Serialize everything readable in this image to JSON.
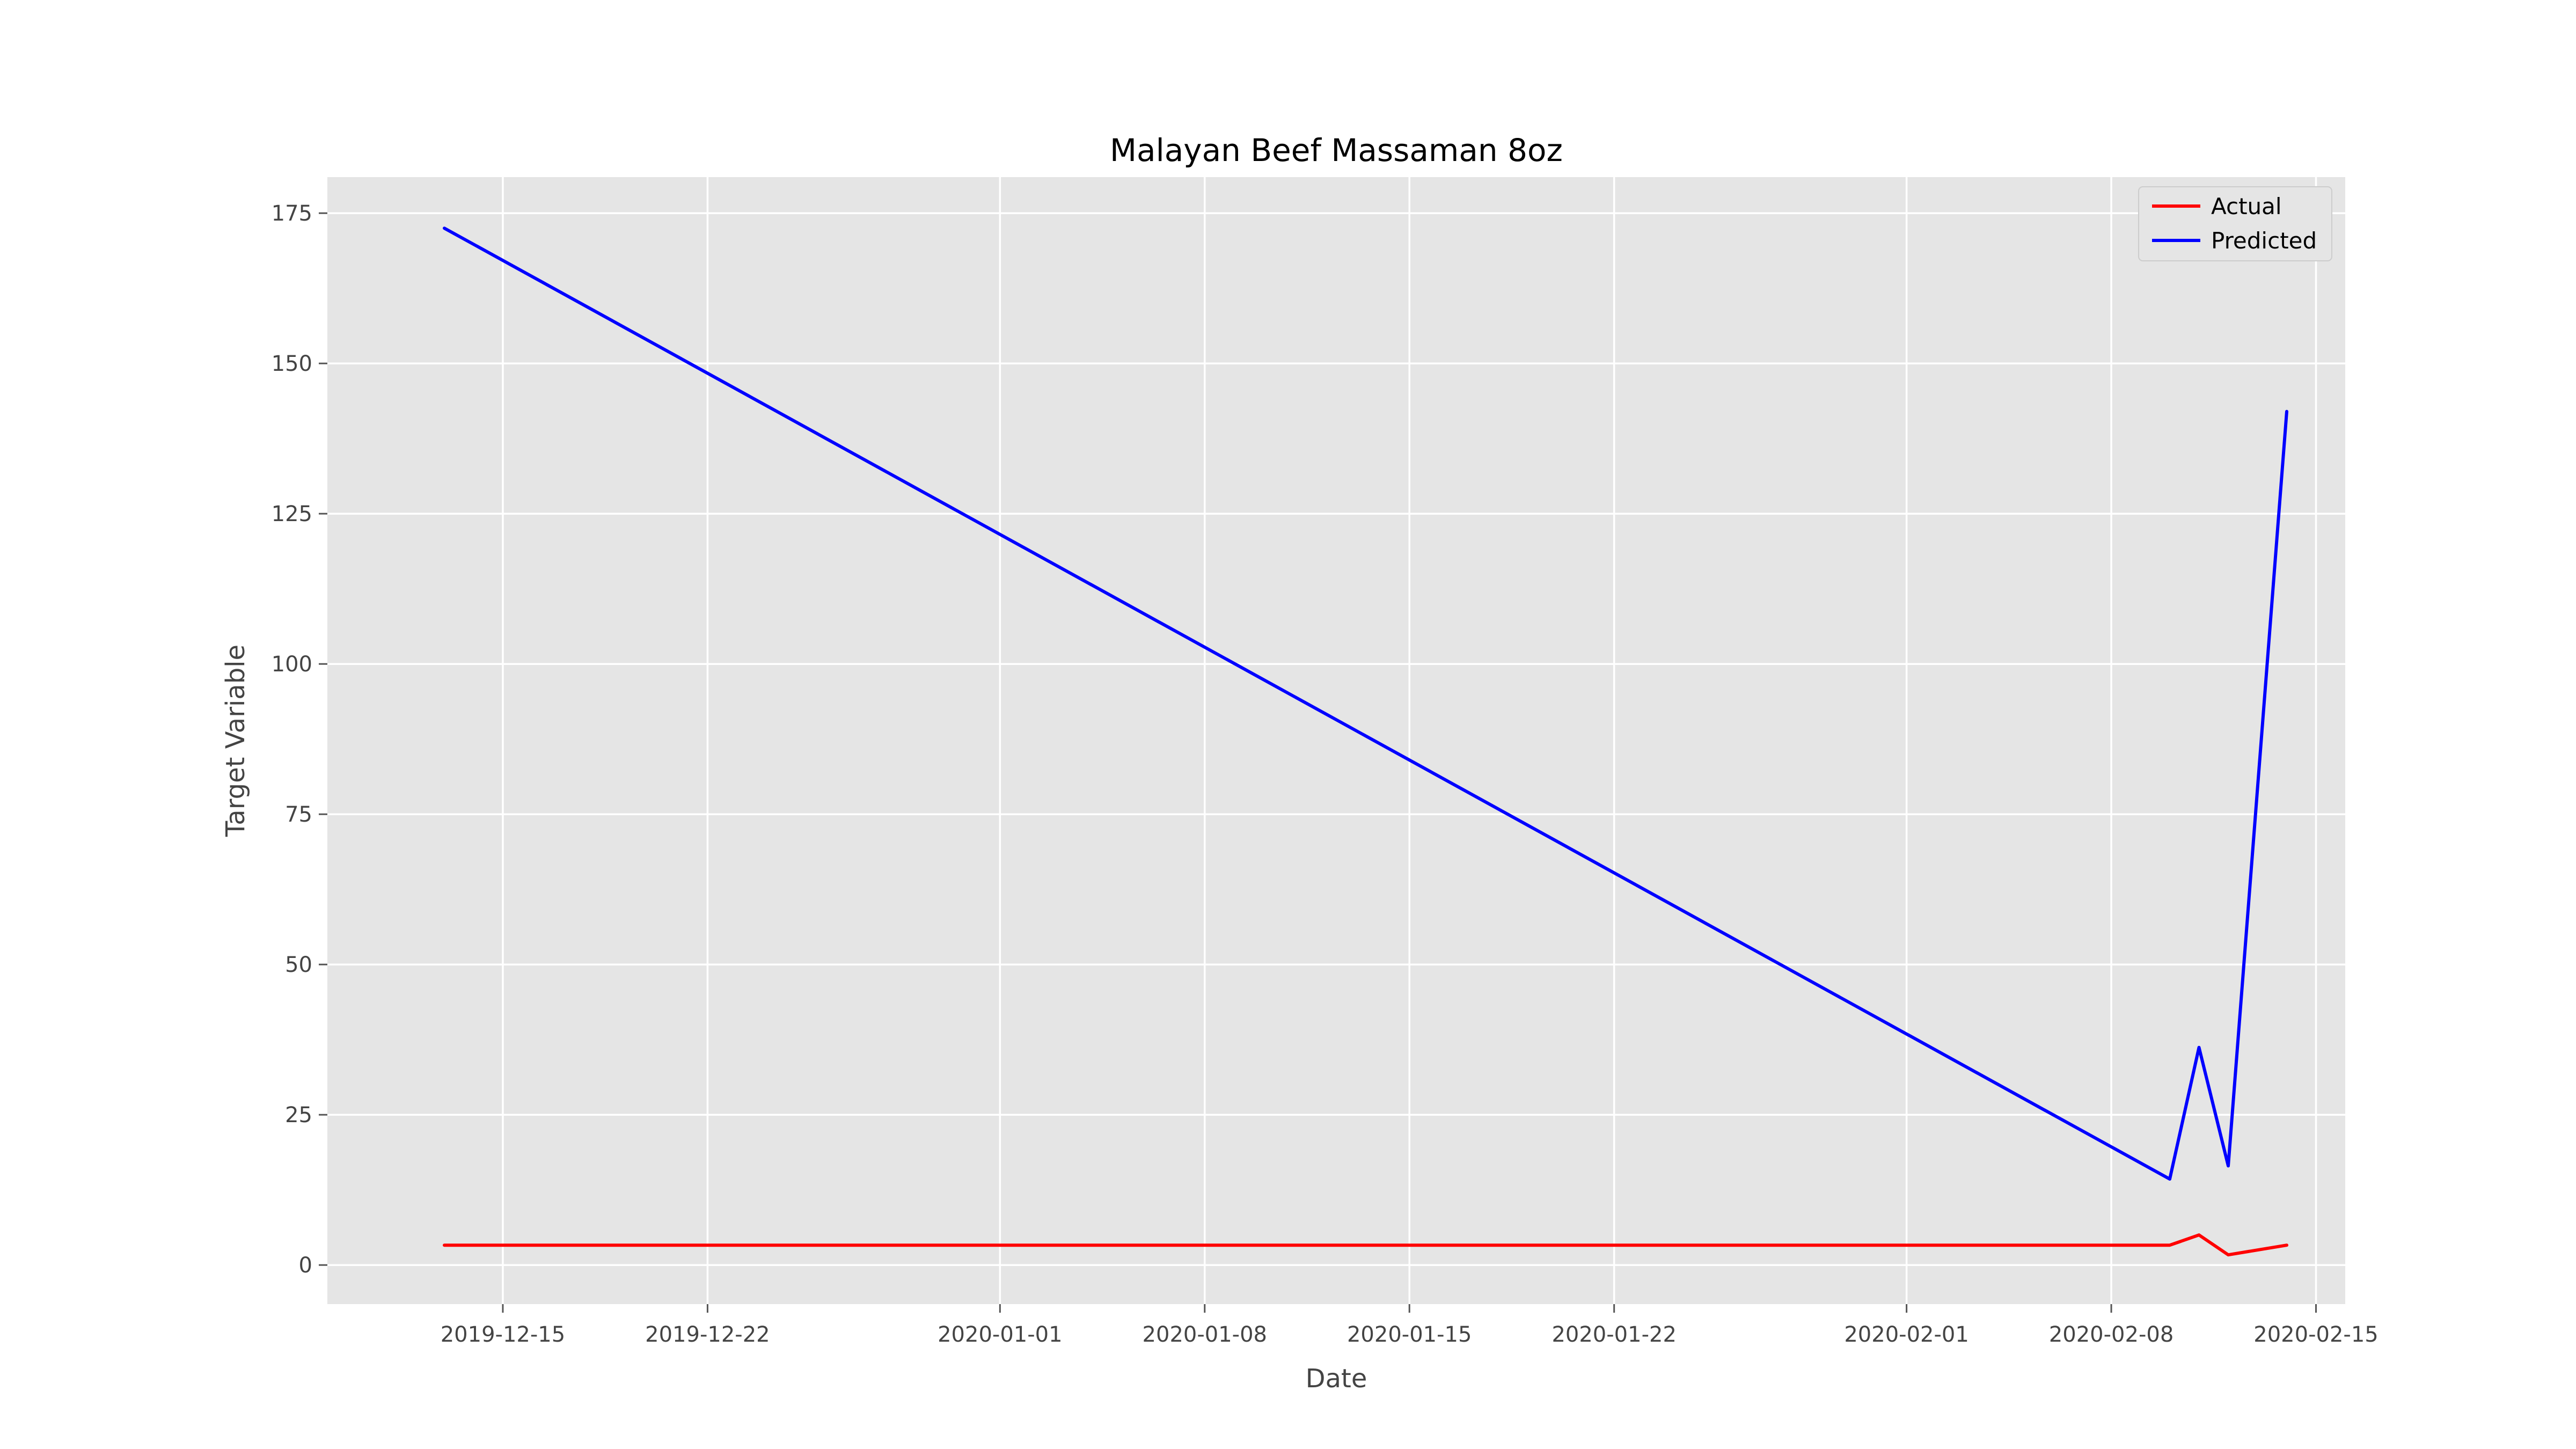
{
  "chart_data": {
    "type": "line",
    "title": "Malayan Beef Massaman 8oz",
    "xlabel": "Date",
    "ylabel": "Target Variable",
    "x_scale": "date",
    "xlim": [
      "2019-12-09",
      "2020-02-16"
    ],
    "ylim": [
      -6.5,
      181
    ],
    "x_ticks": [
      "2019-12-15",
      "2019-12-22",
      "2020-01-01",
      "2020-01-08",
      "2020-01-15",
      "2020-01-22",
      "2020-02-01",
      "2020-02-08",
      "2020-02-15"
    ],
    "y_ticks": [
      0,
      25,
      50,
      75,
      100,
      125,
      150,
      175
    ],
    "grid": true,
    "legend": "top-right",
    "series": [
      {
        "name": "Actual",
        "color": "#ff0000",
        "x": [
          "2019-12-13",
          "2020-02-10",
          "2020-02-11",
          "2020-02-12",
          "2020-02-14"
        ],
        "values": [
          3.3,
          3.3,
          5,
          1.7,
          3.3
        ]
      },
      {
        "name": "Predicted",
        "color": "#0000ff",
        "x": [
          "2019-12-13",
          "2020-02-10",
          "2020-02-11",
          "2020-02-12",
          "2020-02-14"
        ],
        "values": [
          172.5,
          14.3,
          36.2,
          16.5,
          142
        ]
      }
    ]
  }
}
